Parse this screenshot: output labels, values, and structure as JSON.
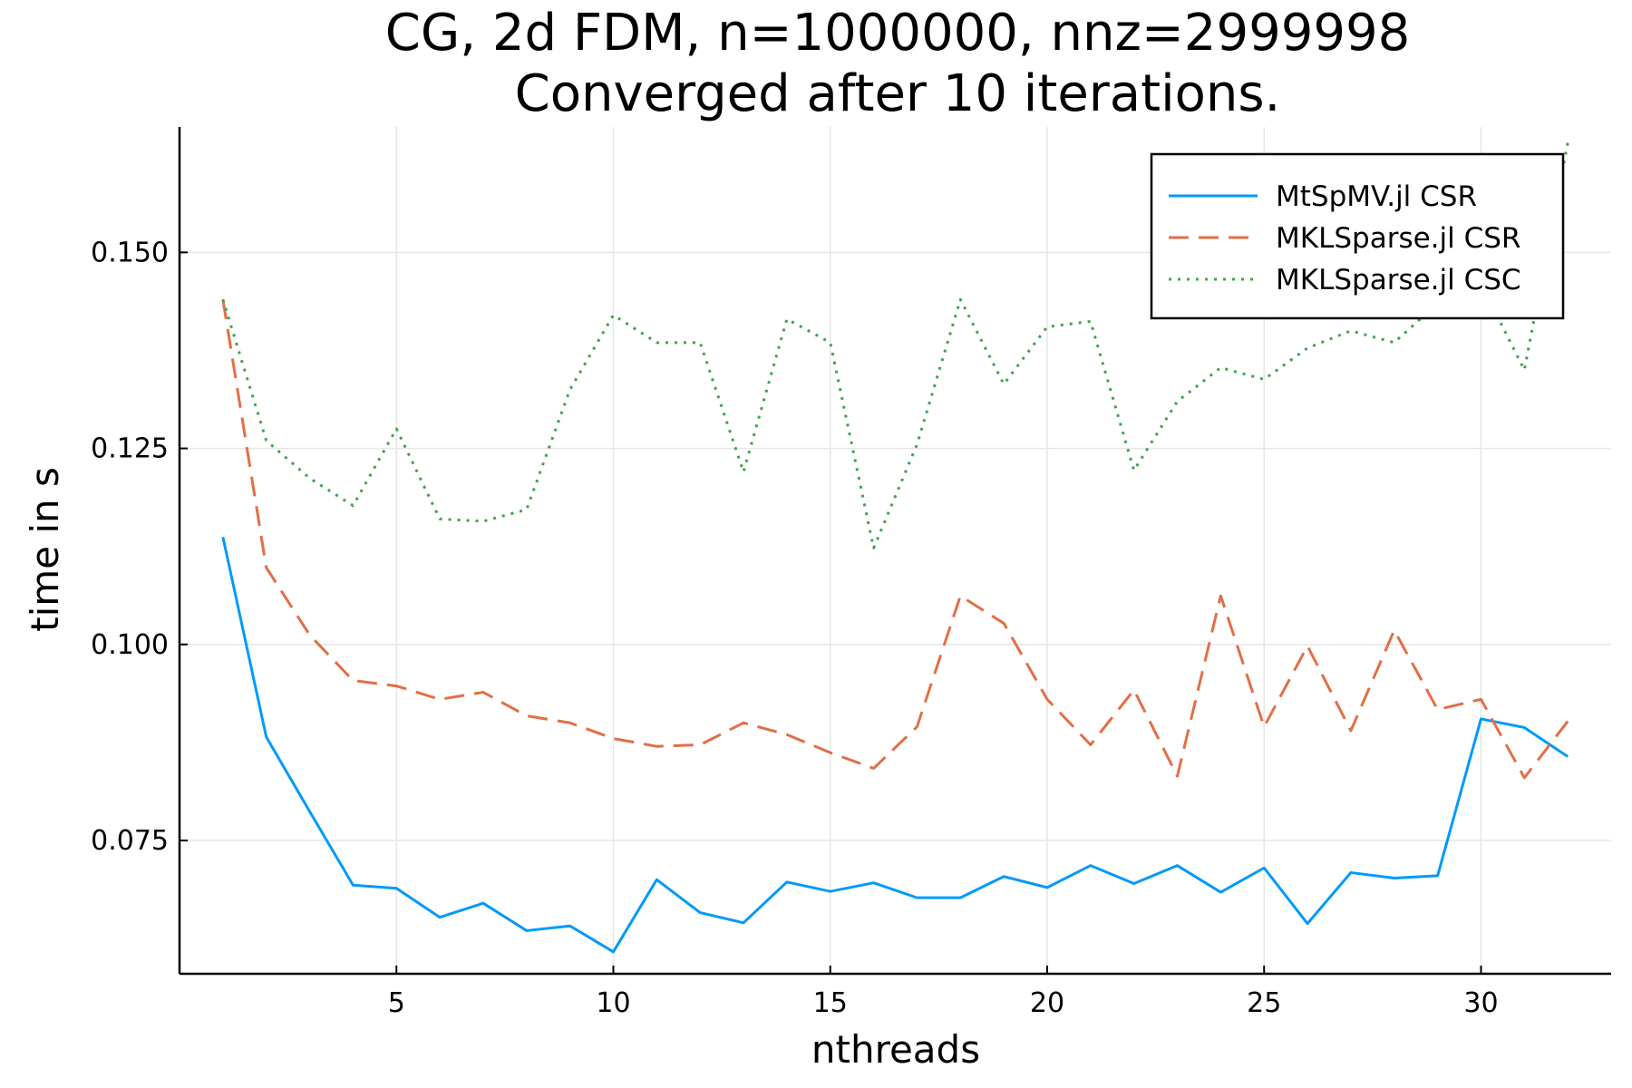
{
  "chart_data": {
    "type": "line",
    "title": "CG, 2d FDM, n=1000000, nnz=2999998",
    "subtitle": "Converged after 10 iterations.",
    "xlabel": "nthreads",
    "ylabel": "time in s",
    "xlim": [
      0,
      33
    ],
    "ylim": [
      0.058,
      0.166
    ],
    "xticks": [
      5,
      10,
      15,
      20,
      25,
      30
    ],
    "xtick_labels": [
      "5",
      "10",
      "15",
      "20",
      "25",
      "30"
    ],
    "yticks": [
      0.075,
      0.1,
      0.125,
      0.15
    ],
    "ytick_labels": [
      "0.075",
      "0.100",
      "0.125",
      "0.150"
    ],
    "grid": true,
    "legend_position": "top-right",
    "x": [
      1,
      2,
      3,
      4,
      5,
      6,
      7,
      8,
      9,
      10,
      11,
      12,
      13,
      14,
      15,
      16,
      17,
      18,
      19,
      20,
      21,
      22,
      23,
      24,
      25,
      26,
      27,
      28,
      29,
      30,
      31,
      32
    ],
    "series": [
      {
        "name": "MtSpMV.jl CSR",
        "color": "#009AF9",
        "style": "solid",
        "values": [
          0.1137,
          0.0882,
          0.0787,
          0.0693,
          0.0689,
          0.0652,
          0.067,
          0.0635,
          0.0641,
          0.0608,
          0.07,
          0.0658,
          0.0645,
          0.0697,
          0.0685,
          0.0696,
          0.0677,
          0.0677,
          0.0704,
          0.069,
          0.0718,
          0.0695,
          0.0718,
          0.0684,
          0.0715,
          0.0644,
          0.0709,
          0.0702,
          0.0705,
          0.0905,
          0.0894,
          0.0857
        ]
      },
      {
        "name": "MKLSparse.jl CSR",
        "color": "#E26F46",
        "style": "dashed",
        "values": [
          0.144,
          0.1098,
          0.1012,
          0.0954,
          0.0947,
          0.093,
          0.0939,
          0.0909,
          0.09,
          0.088,
          0.087,
          0.0872,
          0.09,
          0.0885,
          0.0862,
          0.0842,
          0.0895,
          0.1062,
          0.1027,
          0.093,
          0.0872,
          0.0942,
          0.0832,
          0.1062,
          0.0895,
          0.0998,
          0.089,
          0.1018,
          0.0917,
          0.093,
          0.083,
          0.0902
        ]
      },
      {
        "name": "MKLSparse.jl CSC",
        "color": "#3EA44E",
        "style": "dotted",
        "values": [
          0.144,
          0.126,
          0.1212,
          0.1177,
          0.1275,
          0.116,
          0.1157,
          0.1172,
          0.1325,
          0.142,
          0.1385,
          0.1385,
          0.122,
          0.1415,
          0.1385,
          0.1123,
          0.1255,
          0.144,
          0.1332,
          0.1405,
          0.1412,
          0.1222,
          0.131,
          0.1353,
          0.1338,
          0.1378,
          0.14,
          0.1385,
          0.1435,
          0.146,
          0.135,
          0.164
        ]
      }
    ]
  }
}
